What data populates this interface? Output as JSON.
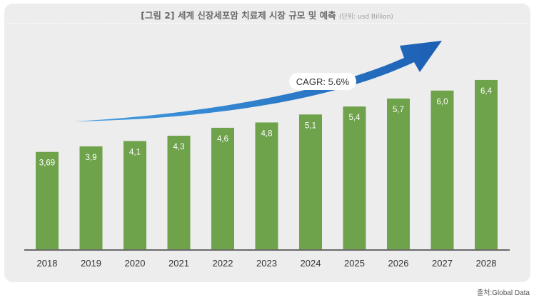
{
  "header": {
    "title": "[그림 2] 세계 신장세포암 치료제 시장 규모 및 예측",
    "unit": "(단위: usd Billion)"
  },
  "footer": {
    "source": "출처:Global Data"
  },
  "chart_data": {
    "type": "bar",
    "title": "[그림 2] 세계 신장세포암 치료제 시장 규모 및 예측",
    "unit": "usd Billion",
    "categories": [
      "2018",
      "2019",
      "2020",
      "2021",
      "2022",
      "2023",
      "2024",
      "2025",
      "2026",
      "2027",
      "2028"
    ],
    "values": [
      3.69,
      3.9,
      4.1,
      4.3,
      4.6,
      4.8,
      5.1,
      5.4,
      5.7,
      6.0,
      6.4
    ],
    "value_labels": [
      "3,69",
      "3,9",
      "4,1",
      "4,3",
      "4,6",
      "4,8",
      "5,1",
      "5,4",
      "5,7",
      "6,0",
      "6,4"
    ],
    "ylim": [
      0,
      7.5
    ],
    "grid": false,
    "bar_color": "#6ea24b",
    "annotation": {
      "text": "CAGR: 5.6%"
    },
    "arrow_colors": [
      "#2f95e0",
      "#1c5fb3"
    ]
  }
}
